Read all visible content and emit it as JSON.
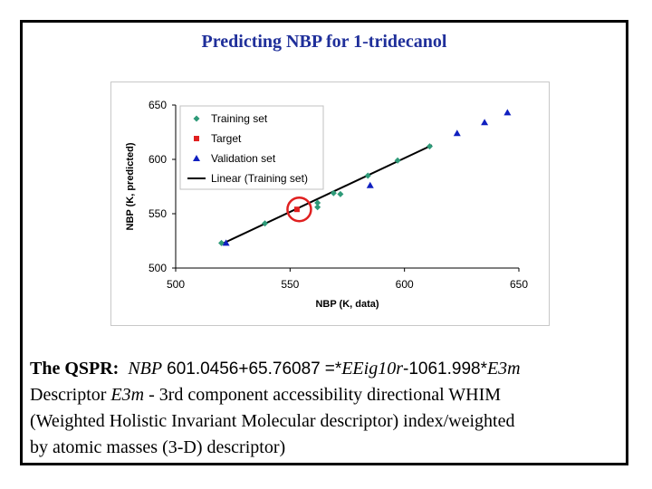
{
  "slide": {
    "title": "Predicting NBP for 1-tridecanol",
    "qspr_label": "The QSPR:",
    "qspr_var": "NBP",
    "qspr_const": "601.0456+65.76087",
    "qspr_eq": "=*",
    "qspr_desc1": "EEig10r",
    "qspr_coef2": "-1061.998*",
    "qspr_desc2": "E3m",
    "descriptor_line1_prefix": "Descriptor ",
    "descriptor_name": "E3m",
    "descriptor_line1_rest": " - 3rd component accessibility directional WHIM",
    "descriptor_line2": "(Weighted Holistic Invariant Molecular descriptor) index/weighted",
    "descriptor_line3": "by atomic masses (3-D) descriptor)"
  },
  "colors": {
    "title": "#1f2f9a",
    "training": "#2e9a78",
    "target": "#e02020",
    "validation": "#1020c0",
    "line": "#000000",
    "circle": "#e02020"
  },
  "chart_data": {
    "type": "scatter",
    "xlabel": "NBP (K, data)",
    "ylabel": "NBP (K, predicted)",
    "xlim": [
      500,
      650
    ],
    "ylim": [
      500,
      650
    ],
    "xticks": [
      "500",
      "550",
      "600",
      "650"
    ],
    "yticks": [
      "500",
      "550",
      "600",
      "650"
    ],
    "legend_position": "top-left",
    "grid": false,
    "series": [
      {
        "name": "Training set",
        "marker": "diamond",
        "points": [
          [
            520,
            523
          ],
          [
            539,
            541
          ],
          [
            562,
            556
          ],
          [
            562,
            560
          ],
          [
            569,
            569
          ],
          [
            572,
            568
          ],
          [
            584,
            585
          ],
          [
            597,
            599
          ],
          [
            611,
            612
          ]
        ]
      },
      {
        "name": "Target",
        "marker": "square",
        "points": [
          [
            553,
            554
          ]
        ]
      },
      {
        "name": "Validation set",
        "marker": "triangle",
        "points": [
          [
            522,
            523
          ],
          [
            585,
            576
          ],
          [
            623,
            624
          ],
          [
            635,
            634
          ],
          [
            645,
            643
          ]
        ]
      },
      {
        "name": "Linear (Training set)",
        "marker": "line",
        "points": [
          [
            521,
            523
          ],
          [
            612,
            613
          ]
        ]
      }
    ],
    "highlight_circle": {
      "x": 554,
      "y": 554
    }
  }
}
